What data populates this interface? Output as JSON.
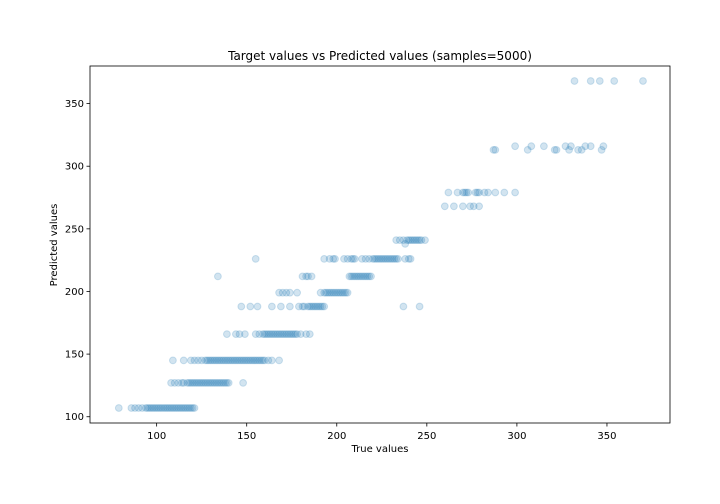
{
  "chart_data": {
    "type": "scatter",
    "title": "Target values vs Predicted values (samples=5000)",
    "xlabel": "True values",
    "ylabel": "Predicted values",
    "xlim": [
      63,
      385
    ],
    "ylim": [
      95,
      380
    ],
    "xticks": [
      100,
      150,
      200,
      250,
      300,
      350
    ],
    "yticks": [
      100,
      150,
      200,
      250,
      300,
      350
    ],
    "grid": false,
    "legend": "none",
    "marker_color": "#1f77b4",
    "marker_alpha": 0.2,
    "series": [
      {
        "points": [
          [
            79,
            107
          ],
          [
            86,
            107
          ],
          [
            88,
            107
          ],
          [
            90,
            107
          ],
          [
            92,
            107
          ],
          [
            94,
            107
          ],
          [
            95,
            107
          ],
          [
            96,
            107
          ],
          [
            97,
            107
          ],
          [
            98,
            107
          ],
          [
            99,
            107
          ],
          [
            100,
            107
          ],
          [
            101,
            107
          ],
          [
            102,
            107
          ],
          [
            103,
            107
          ],
          [
            104,
            107
          ],
          [
            105,
            107
          ],
          [
            106,
            107
          ],
          [
            107,
            107
          ],
          [
            108,
            107
          ],
          [
            109,
            107
          ],
          [
            110,
            107
          ],
          [
            111,
            107
          ],
          [
            112,
            107
          ],
          [
            113,
            107
          ],
          [
            114,
            107
          ],
          [
            115,
            107
          ],
          [
            116,
            107
          ],
          [
            117,
            107
          ],
          [
            118,
            107
          ],
          [
            119,
            107
          ],
          [
            120,
            107
          ],
          [
            121,
            107
          ],
          [
            108,
            127
          ],
          [
            110,
            127
          ],
          [
            112,
            127
          ],
          [
            114,
            127
          ],
          [
            115,
            127
          ],
          [
            117,
            127
          ],
          [
            118,
            127
          ],
          [
            119,
            127
          ],
          [
            120,
            127
          ],
          [
            121,
            127
          ],
          [
            122,
            127
          ],
          [
            123,
            127
          ],
          [
            124,
            127
          ],
          [
            125,
            127
          ],
          [
            126,
            127
          ],
          [
            127,
            127
          ],
          [
            128,
            127
          ],
          [
            129,
            127
          ],
          [
            130,
            127
          ],
          [
            131,
            127
          ],
          [
            132,
            127
          ],
          [
            133,
            127
          ],
          [
            134,
            127
          ],
          [
            135,
            127
          ],
          [
            136,
            127
          ],
          [
            137,
            127
          ],
          [
            138,
            127
          ],
          [
            139,
            127
          ],
          [
            140,
            127
          ],
          [
            148,
            127
          ],
          [
            109,
            145
          ],
          [
            115,
            145
          ],
          [
            119,
            145
          ],
          [
            121,
            145
          ],
          [
            123,
            145
          ],
          [
            125,
            145
          ],
          [
            127,
            145
          ],
          [
            128,
            145
          ],
          [
            129,
            145
          ],
          [
            130,
            145
          ],
          [
            131,
            145
          ],
          [
            132,
            145
          ],
          [
            133,
            145
          ],
          [
            134,
            145
          ],
          [
            135,
            145
          ],
          [
            136,
            145
          ],
          [
            137,
            145
          ],
          [
            138,
            145
          ],
          [
            139,
            145
          ],
          [
            140,
            145
          ],
          [
            141,
            145
          ],
          [
            142,
            145
          ],
          [
            143,
            145
          ],
          [
            144,
            145
          ],
          [
            145,
            145
          ],
          [
            146,
            145
          ],
          [
            147,
            145
          ],
          [
            148,
            145
          ],
          [
            149,
            145
          ],
          [
            150,
            145
          ],
          [
            151,
            145
          ],
          [
            152,
            145
          ],
          [
            153,
            145
          ],
          [
            154,
            145
          ],
          [
            155,
            145
          ],
          [
            156,
            145
          ],
          [
            157,
            145
          ],
          [
            158,
            145
          ],
          [
            159,
            145
          ],
          [
            160,
            145
          ],
          [
            162,
            145
          ],
          [
            164,
            145
          ],
          [
            168,
            145
          ],
          [
            139,
            166
          ],
          [
            144,
            166
          ],
          [
            146,
            166
          ],
          [
            149,
            166
          ],
          [
            155,
            166
          ],
          [
            157,
            166
          ],
          [
            159,
            166
          ],
          [
            160,
            166
          ],
          [
            161,
            166
          ],
          [
            162,
            166
          ],
          [
            163,
            166
          ],
          [
            164,
            166
          ],
          [
            165,
            166
          ],
          [
            166,
            166
          ],
          [
            167,
            166
          ],
          [
            168,
            166
          ],
          [
            169,
            166
          ],
          [
            170,
            166
          ],
          [
            171,
            166
          ],
          [
            172,
            166
          ],
          [
            173,
            166
          ],
          [
            174,
            166
          ],
          [
            175,
            166
          ],
          [
            176,
            166
          ],
          [
            177,
            166
          ],
          [
            178,
            166
          ],
          [
            180,
            166
          ],
          [
            183,
            166
          ],
          [
            185,
            166
          ],
          [
            147,
            188
          ],
          [
            152,
            188
          ],
          [
            156,
            188
          ],
          [
            164,
            188
          ],
          [
            169,
            188
          ],
          [
            174,
            188
          ],
          [
            179,
            188
          ],
          [
            181,
            188
          ],
          [
            182,
            188
          ],
          [
            184,
            188
          ],
          [
            185,
            188
          ],
          [
            186,
            188
          ],
          [
            187,
            188
          ],
          [
            188,
            188
          ],
          [
            189,
            188
          ],
          [
            190,
            188
          ],
          [
            191,
            188
          ],
          [
            192,
            188
          ],
          [
            193,
            188
          ],
          [
            237,
            188
          ],
          [
            246,
            188
          ],
          [
            168,
            199
          ],
          [
            170,
            199
          ],
          [
            172,
            199
          ],
          [
            174,
            199
          ],
          [
            178,
            199
          ],
          [
            191,
            199
          ],
          [
            193,
            199
          ],
          [
            194,
            199
          ],
          [
            195,
            199
          ],
          [
            196,
            199
          ],
          [
            197,
            199
          ],
          [
            198,
            199
          ],
          [
            199,
            199
          ],
          [
            200,
            199
          ],
          [
            201,
            199
          ],
          [
            202,
            199
          ],
          [
            203,
            199
          ],
          [
            204,
            199
          ],
          [
            205,
            199
          ],
          [
            206,
            199
          ],
          [
            134,
            212
          ],
          [
            181,
            212
          ],
          [
            183,
            212
          ],
          [
            184,
            212
          ],
          [
            186,
            212
          ],
          [
            207,
            212
          ],
          [
            208,
            212
          ],
          [
            209,
            212
          ],
          [
            210,
            212
          ],
          [
            211,
            212
          ],
          [
            212,
            212
          ],
          [
            213,
            212
          ],
          [
            214,
            212
          ],
          [
            215,
            212
          ],
          [
            216,
            212
          ],
          [
            217,
            212
          ],
          [
            218,
            212
          ],
          [
            219,
            212
          ],
          [
            155,
            226
          ],
          [
            193,
            226
          ],
          [
            196,
            226
          ],
          [
            198,
            226
          ],
          [
            199,
            226
          ],
          [
            204,
            226
          ],
          [
            206,
            226
          ],
          [
            208,
            226
          ],
          [
            209,
            226
          ],
          [
            210,
            226
          ],
          [
            214,
            226
          ],
          [
            216,
            226
          ],
          [
            218,
            226
          ],
          [
            220,
            226
          ],
          [
            221,
            226
          ],
          [
            222,
            226
          ],
          [
            223,
            226
          ],
          [
            224,
            226
          ],
          [
            225,
            226
          ],
          [
            226,
            226
          ],
          [
            227,
            226
          ],
          [
            228,
            226
          ],
          [
            229,
            226
          ],
          [
            230,
            226
          ],
          [
            231,
            226
          ],
          [
            232,
            226
          ],
          [
            233,
            226
          ],
          [
            234,
            226
          ],
          [
            238,
            226
          ],
          [
            240,
            226
          ],
          [
            241,
            226
          ],
          [
            233,
            241
          ],
          [
            235,
            241
          ],
          [
            237,
            241
          ],
          [
            238,
            238
          ],
          [
            239,
            241
          ],
          [
            240,
            241
          ],
          [
            241,
            241
          ],
          [
            242,
            241
          ],
          [
            243,
            241
          ],
          [
            244,
            241
          ],
          [
            245,
            241
          ],
          [
            246,
            241
          ],
          [
            247,
            241
          ],
          [
            249,
            241
          ],
          [
            260,
            268
          ],
          [
            265,
            268
          ],
          [
            270,
            268
          ],
          [
            274,
            268
          ],
          [
            276,
            268
          ],
          [
            279,
            268
          ],
          [
            262,
            279
          ],
          [
            267,
            279
          ],
          [
            270,
            279
          ],
          [
            271,
            279
          ],
          [
            272,
            279
          ],
          [
            273,
            279
          ],
          [
            277,
            279
          ],
          [
            278,
            279
          ],
          [
            279,
            279
          ],
          [
            282,
            279
          ],
          [
            284,
            279
          ],
          [
            288,
            279
          ],
          [
            293,
            279
          ],
          [
            299,
            279
          ],
          [
            287,
            313
          ],
          [
            288,
            313
          ],
          [
            299,
            316
          ],
          [
            306,
            313
          ],
          [
            308,
            316
          ],
          [
            315,
            316
          ],
          [
            321,
            313
          ],
          [
            322,
            313
          ],
          [
            327,
            316
          ],
          [
            329,
            313
          ],
          [
            330,
            316
          ],
          [
            334,
            313
          ],
          [
            336,
            313
          ],
          [
            338,
            316
          ],
          [
            341,
            316
          ],
          [
            347,
            313
          ],
          [
            348,
            316
          ],
          [
            332,
            368
          ],
          [
            341,
            368
          ],
          [
            346,
            368
          ],
          [
            354,
            368
          ],
          [
            370,
            368
          ]
        ]
      }
    ]
  }
}
